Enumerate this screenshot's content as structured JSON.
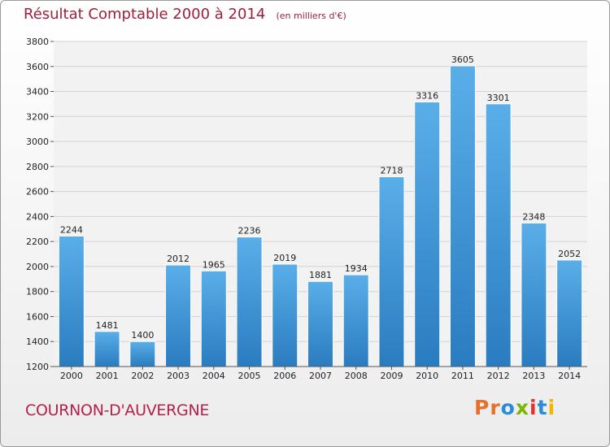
{
  "header": {
    "title": "Résultat Comptable 2000 à 2014",
    "subtitle": "(en milliers d'€)"
  },
  "footer": {
    "city": "COURNON-D'AUVERGNE",
    "brand": "Proxiti",
    "brand_colors": [
      "#e8702a",
      "#e8702a",
      "#2a8bd6",
      "#7ab800",
      "#e8312a",
      "#2a8bd6",
      "#f2b600"
    ]
  },
  "chart_data": {
    "type": "bar",
    "title": "Résultat Comptable 2000 à 2014",
    "subtitle": "(en milliers d'€)",
    "categories": [
      "2000",
      "2001",
      "2002",
      "2003",
      "2004",
      "2005",
      "2006",
      "2007",
      "2008",
      "2009",
      "2010",
      "2011",
      "2012",
      "2013",
      "2014"
    ],
    "values": [
      2244,
      1481,
      1400,
      2012,
      1965,
      2236,
      2019,
      1881,
      1934,
      2718,
      3316,
      3605,
      3301,
      2348,
      2052
    ],
    "ylim": [
      1200,
      3800
    ],
    "yticks": [
      1200,
      1400,
      1600,
      1800,
      2000,
      2200,
      2400,
      2600,
      2800,
      3000,
      3200,
      3400,
      3600,
      3800
    ],
    "grid": true,
    "bar_color_top": "#5aaee8",
    "bar_color_bottom": "#2a7cc0",
    "xlabel": "",
    "ylabel": ""
  }
}
